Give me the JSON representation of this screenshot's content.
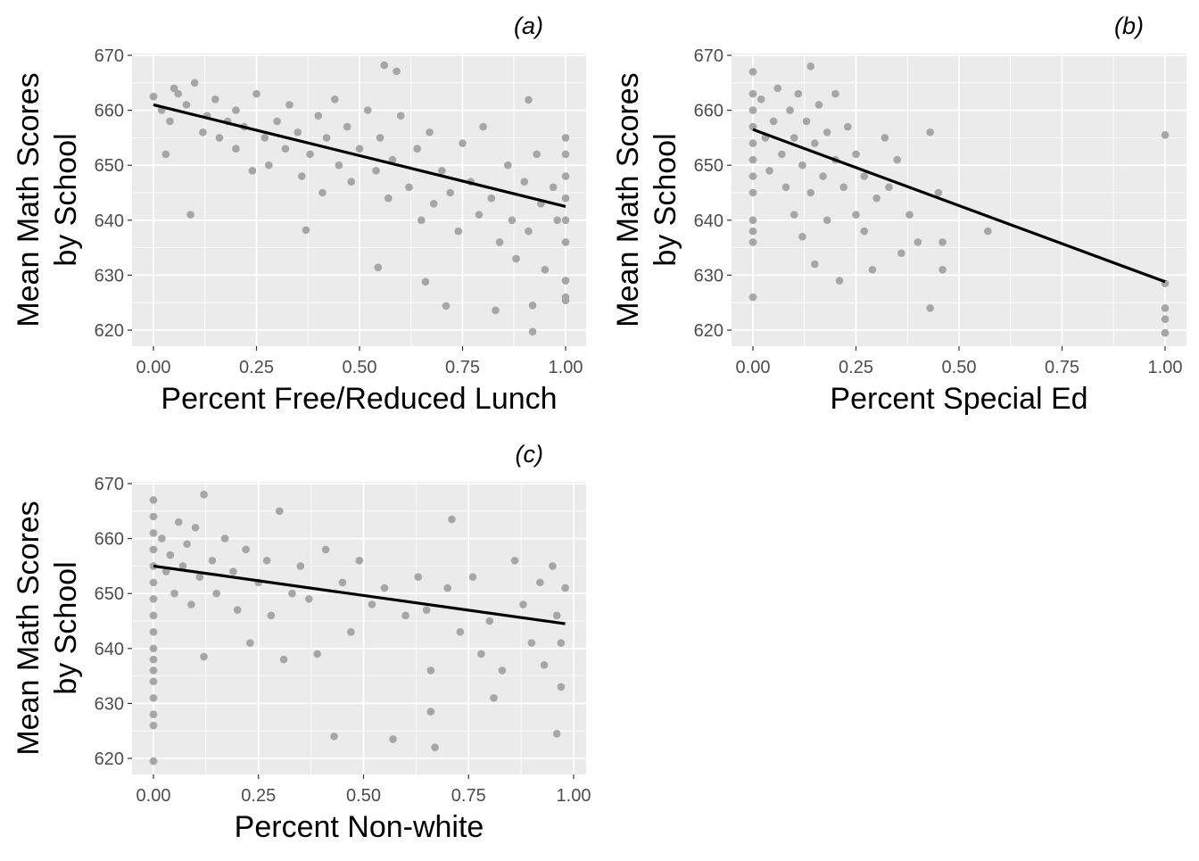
{
  "chart_data": [
    {
      "type": "scatter",
      "title": "(a)",
      "xlabel": "Percent Free/Reduced Lunch",
      "ylabel": [
        "Mean Math Scores",
        "by School"
      ],
      "xlim": [
        -0.05,
        1.05
      ],
      "ylim": [
        617,
        671
      ],
      "xticks": [
        "0.00",
        "0.25",
        "0.50",
        "0.75",
        "1.00"
      ],
      "yticks": [
        "620",
        "630",
        "640",
        "650",
        "660",
        "670"
      ],
      "grid": true,
      "point_color": "#a6a6a6",
      "line_color": "#000000",
      "fit_line": [
        [
          0,
          661
        ],
        [
          1,
          642.5
        ]
      ],
      "points": [
        [
          0,
          662.5
        ],
        [
          0.02,
          660
        ],
        [
          0.03,
          652
        ],
        [
          0.04,
          658
        ],
        [
          0.05,
          664
        ],
        [
          0.06,
          663
        ],
        [
          0.08,
          661
        ],
        [
          0.09,
          641
        ],
        [
          0.1,
          665
        ],
        [
          0.12,
          656
        ],
        [
          0.13,
          659
        ],
        [
          0.15,
          662
        ],
        [
          0.16,
          655
        ],
        [
          0.18,
          658
        ],
        [
          0.2,
          653
        ],
        [
          0.2,
          660
        ],
        [
          0.22,
          657
        ],
        [
          0.24,
          649
        ],
        [
          0.25,
          663
        ],
        [
          0.27,
          655
        ],
        [
          0.28,
          650
        ],
        [
          0.3,
          658
        ],
        [
          0.32,
          653
        ],
        [
          0.33,
          661
        ],
        [
          0.35,
          656
        ],
        [
          0.36,
          648
        ],
        [
          0.37,
          638.2
        ],
        [
          0.38,
          652
        ],
        [
          0.4,
          659
        ],
        [
          0.41,
          645
        ],
        [
          0.42,
          655
        ],
        [
          0.44,
          662
        ],
        [
          0.45,
          650
        ],
        [
          0.47,
          657
        ],
        [
          0.48,
          647
        ],
        [
          0.5,
          653
        ],
        [
          0.52,
          660
        ],
        [
          0.54,
          649
        ],
        [
          0.545,
          631.4
        ],
        [
          0.55,
          655
        ],
        [
          0.56,
          668.2
        ],
        [
          0.57,
          644
        ],
        [
          0.58,
          651
        ],
        [
          0.59,
          667.1
        ],
        [
          0.6,
          659
        ],
        [
          0.62,
          646
        ],
        [
          0.64,
          653
        ],
        [
          0.65,
          640
        ],
        [
          0.66,
          628.8
        ],
        [
          0.67,
          656
        ],
        [
          0.68,
          643
        ],
        [
          0.7,
          649
        ],
        [
          0.71,
          624.4
        ],
        [
          0.72,
          645
        ],
        [
          0.74,
          638
        ],
        [
          0.75,
          654
        ],
        [
          0.77,
          647
        ],
        [
          0.79,
          641
        ],
        [
          0.8,
          657
        ],
        [
          0.82,
          644
        ],
        [
          0.83,
          623.6
        ],
        [
          0.84,
          636
        ],
        [
          0.86,
          650
        ],
        [
          0.87,
          640
        ],
        [
          0.88,
          633
        ],
        [
          0.9,
          647
        ],
        [
          0.91,
          661.9
        ],
        [
          0.91,
          638
        ],
        [
          0.92,
          624.5
        ],
        [
          0.92,
          619.7
        ],
        [
          0.93,
          652
        ],
        [
          0.94,
          643
        ],
        [
          0.95,
          631
        ],
        [
          0.97,
          646
        ],
        [
          0.98,
          640
        ],
        [
          1,
          655
        ],
        [
          1,
          652
        ],
        [
          1,
          648
        ],
        [
          1,
          644
        ],
        [
          1,
          640
        ],
        [
          1,
          636
        ],
        [
          1,
          629
        ],
        [
          1,
          626
        ],
        [
          1,
          625.4
        ]
      ]
    },
    {
      "type": "scatter",
      "title": "(b)",
      "xlabel": "Percent Special Ed",
      "ylabel": [
        "Mean Math Scores",
        "by School"
      ],
      "xlim": [
        -0.05,
        1.05
      ],
      "ylim": [
        617,
        671
      ],
      "xticks": [
        "0.00",
        "0.25",
        "0.50",
        "0.75",
        "1.00"
      ],
      "yticks": [
        "620",
        "630",
        "640",
        "650",
        "660",
        "670"
      ],
      "grid": true,
      "point_color": "#a6a6a6",
      "line_color": "#000000",
      "fit_line": [
        [
          0,
          656.5
        ],
        [
          1,
          628.8
        ]
      ],
      "points": [
        [
          0,
          667
        ],
        [
          0,
          663
        ],
        [
          0,
          660
        ],
        [
          0,
          657
        ],
        [
          0,
          654
        ],
        [
          0,
          651
        ],
        [
          0,
          648
        ],
        [
          0,
          645
        ],
        [
          0,
          640
        ],
        [
          0,
          638
        ],
        [
          0,
          636
        ],
        [
          0,
          626
        ],
        [
          0.02,
          662
        ],
        [
          0.03,
          655
        ],
        [
          0.04,
          649
        ],
        [
          0.05,
          658
        ],
        [
          0.06,
          664
        ],
        [
          0.07,
          652
        ],
        [
          0.08,
          646
        ],
        [
          0.09,
          660
        ],
        [
          0.1,
          655
        ],
        [
          0.1,
          641
        ],
        [
          0.11,
          663
        ],
        [
          0.12,
          650
        ],
        [
          0.12,
          637
        ],
        [
          0.13,
          658
        ],
        [
          0.14,
          645
        ],
        [
          0.14,
          668
        ],
        [
          0.15,
          654
        ],
        [
          0.15,
          632
        ],
        [
          0.16,
          661
        ],
        [
          0.17,
          648
        ],
        [
          0.18,
          640
        ],
        [
          0.18,
          656
        ],
        [
          0.2,
          651
        ],
        [
          0.2,
          663
        ],
        [
          0.21,
          629
        ],
        [
          0.22,
          646
        ],
        [
          0.23,
          657
        ],
        [
          0.25,
          641
        ],
        [
          0.25,
          652
        ],
        [
          0.27,
          648
        ],
        [
          0.27,
          638
        ],
        [
          0.29,
          631
        ],
        [
          0.3,
          644
        ],
        [
          0.32,
          655
        ],
        [
          0.33,
          646
        ],
        [
          0.35,
          651
        ],
        [
          0.36,
          634
        ],
        [
          0.38,
          641
        ],
        [
          0.4,
          636
        ],
        [
          0.43,
          656
        ],
        [
          0.43,
          624
        ],
        [
          0.45,
          645
        ],
        [
          0.46,
          636
        ],
        [
          0.46,
          631
        ],
        [
          0.57,
          638
        ],
        [
          1,
          655.5
        ],
        [
          1,
          628.5
        ],
        [
          1,
          624
        ],
        [
          1,
          622
        ],
        [
          1,
          619.5
        ]
      ]
    },
    {
      "type": "scatter",
      "title": "(c)",
      "xlabel": "Percent Non-white",
      "ylabel": [
        "Mean Math Scores",
        "by School"
      ],
      "xlim": [
        -0.05,
        1.03
      ],
      "ylim": [
        617,
        671
      ],
      "xticks": [
        "0.00",
        "0.25",
        "0.50",
        "0.75",
        "1.00"
      ],
      "yticks": [
        "620",
        "630",
        "640",
        "650",
        "660",
        "670"
      ],
      "grid": true,
      "point_color": "#a6a6a6",
      "line_color": "#000000",
      "fit_line": [
        [
          0,
          655
        ],
        [
          0.98,
          644.5
        ]
      ],
      "points": [
        [
          0,
          667
        ],
        [
          0,
          664
        ],
        [
          0,
          661
        ],
        [
          0,
          658
        ],
        [
          0,
          655
        ],
        [
          0,
          652
        ],
        [
          0,
          649
        ],
        [
          0,
          646
        ],
        [
          0,
          643
        ],
        [
          0,
          640
        ],
        [
          0,
          638
        ],
        [
          0,
          636
        ],
        [
          0,
          634
        ],
        [
          0,
          631
        ],
        [
          0,
          628
        ],
        [
          0,
          626
        ],
        [
          0,
          619.5
        ],
        [
          0.02,
          660
        ],
        [
          0.03,
          654
        ],
        [
          0.04,
          657
        ],
        [
          0.05,
          650
        ],
        [
          0.06,
          663
        ],
        [
          0.07,
          655
        ],
        [
          0.08,
          659
        ],
        [
          0.09,
          648
        ],
        [
          0.1,
          662
        ],
        [
          0.11,
          653
        ],
        [
          0.12,
          638.5
        ],
        [
          0.12,
          668
        ],
        [
          0.14,
          656
        ],
        [
          0.15,
          650
        ],
        [
          0.17,
          660
        ],
        [
          0.19,
          654
        ],
        [
          0.2,
          647
        ],
        [
          0.22,
          658
        ],
        [
          0.23,
          641
        ],
        [
          0.25,
          652
        ],
        [
          0.27,
          656
        ],
        [
          0.28,
          646
        ],
        [
          0.3,
          665
        ],
        [
          0.31,
          638
        ],
        [
          0.33,
          650
        ],
        [
          0.35,
          655
        ],
        [
          0.37,
          649
        ],
        [
          0.39,
          639
        ],
        [
          0.41,
          658
        ],
        [
          0.43,
          624
        ],
        [
          0.45,
          652
        ],
        [
          0.47,
          643
        ],
        [
          0.49,
          656
        ],
        [
          0.52,
          648
        ],
        [
          0.55,
          651
        ],
        [
          0.57,
          623.5
        ],
        [
          0.6,
          646
        ],
        [
          0.63,
          653
        ],
        [
          0.65,
          647
        ],
        [
          0.66,
          636
        ],
        [
          0.66,
          628.5
        ],
        [
          0.67,
          622
        ],
        [
          0.7,
          651
        ],
        [
          0.71,
          663.5
        ],
        [
          0.73,
          643
        ],
        [
          0.76,
          653
        ],
        [
          0.78,
          639
        ],
        [
          0.8,
          645
        ],
        [
          0.81,
          631
        ],
        [
          0.83,
          636
        ],
        [
          0.86,
          656
        ],
        [
          0.88,
          648
        ],
        [
          0.9,
          641
        ],
        [
          0.92,
          652
        ],
        [
          0.93,
          637
        ],
        [
          0.95,
          655
        ],
        [
          0.96,
          646
        ],
        [
          0.96,
          624.5
        ],
        [
          0.97,
          633
        ],
        [
          0.98,
          651
        ],
        [
          0.97,
          641
        ]
      ]
    }
  ]
}
